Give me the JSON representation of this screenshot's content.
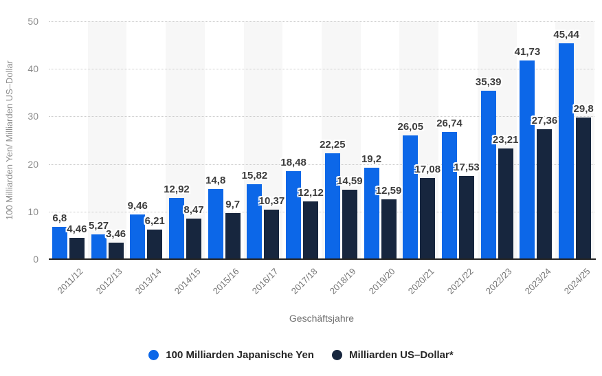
{
  "chart_data": {
    "type": "bar",
    "title": "",
    "categories": [
      "2011/12",
      "2012/13",
      "2013/14",
      "2014/15",
      "2015/16",
      "2016/17",
      "2017/18",
      "2018/19",
      "2019/20",
      "2020/21",
      "2021/22",
      "2022/23",
      "2023/24",
      "2024/25"
    ],
    "series": [
      {
        "name": "100 Milliarden Japanische Yen",
        "color": "#0c67e8",
        "values": [
          6.8,
          5.27,
          9.46,
          12.92,
          14.8,
          15.82,
          18.48,
          22.25,
          19.2,
          26.05,
          26.74,
          35.39,
          41.73,
          45.44
        ]
      },
      {
        "name": "Milliarden US–Dollar*",
        "color": "#17263e",
        "values": [
          4.46,
          3.46,
          6.21,
          8.47,
          9.7,
          10.37,
          12.12,
          14.59,
          12.59,
          17.08,
          17.53,
          23.21,
          27.36,
          29.8
        ]
      }
    ],
    "xlabel": "Geschäftsjahre",
    "ylabel": "100 Milliarden Yen/ Milliarden US–Dollar",
    "ylim": [
      0,
      50
    ],
    "yticks": [
      0,
      10,
      20,
      30,
      40,
      50
    ],
    "grid": "horizontal-dotted",
    "legend_position": "bottom",
    "decimal_separator": ",",
    "colors": {
      "band": "#f7f7f7",
      "gridline": "#cccccc",
      "axis_line": "#222222",
      "tick_text": "#8c8c8c",
      "value_label_text": "#3d3d3d",
      "legend_text": "#262626"
    }
  }
}
